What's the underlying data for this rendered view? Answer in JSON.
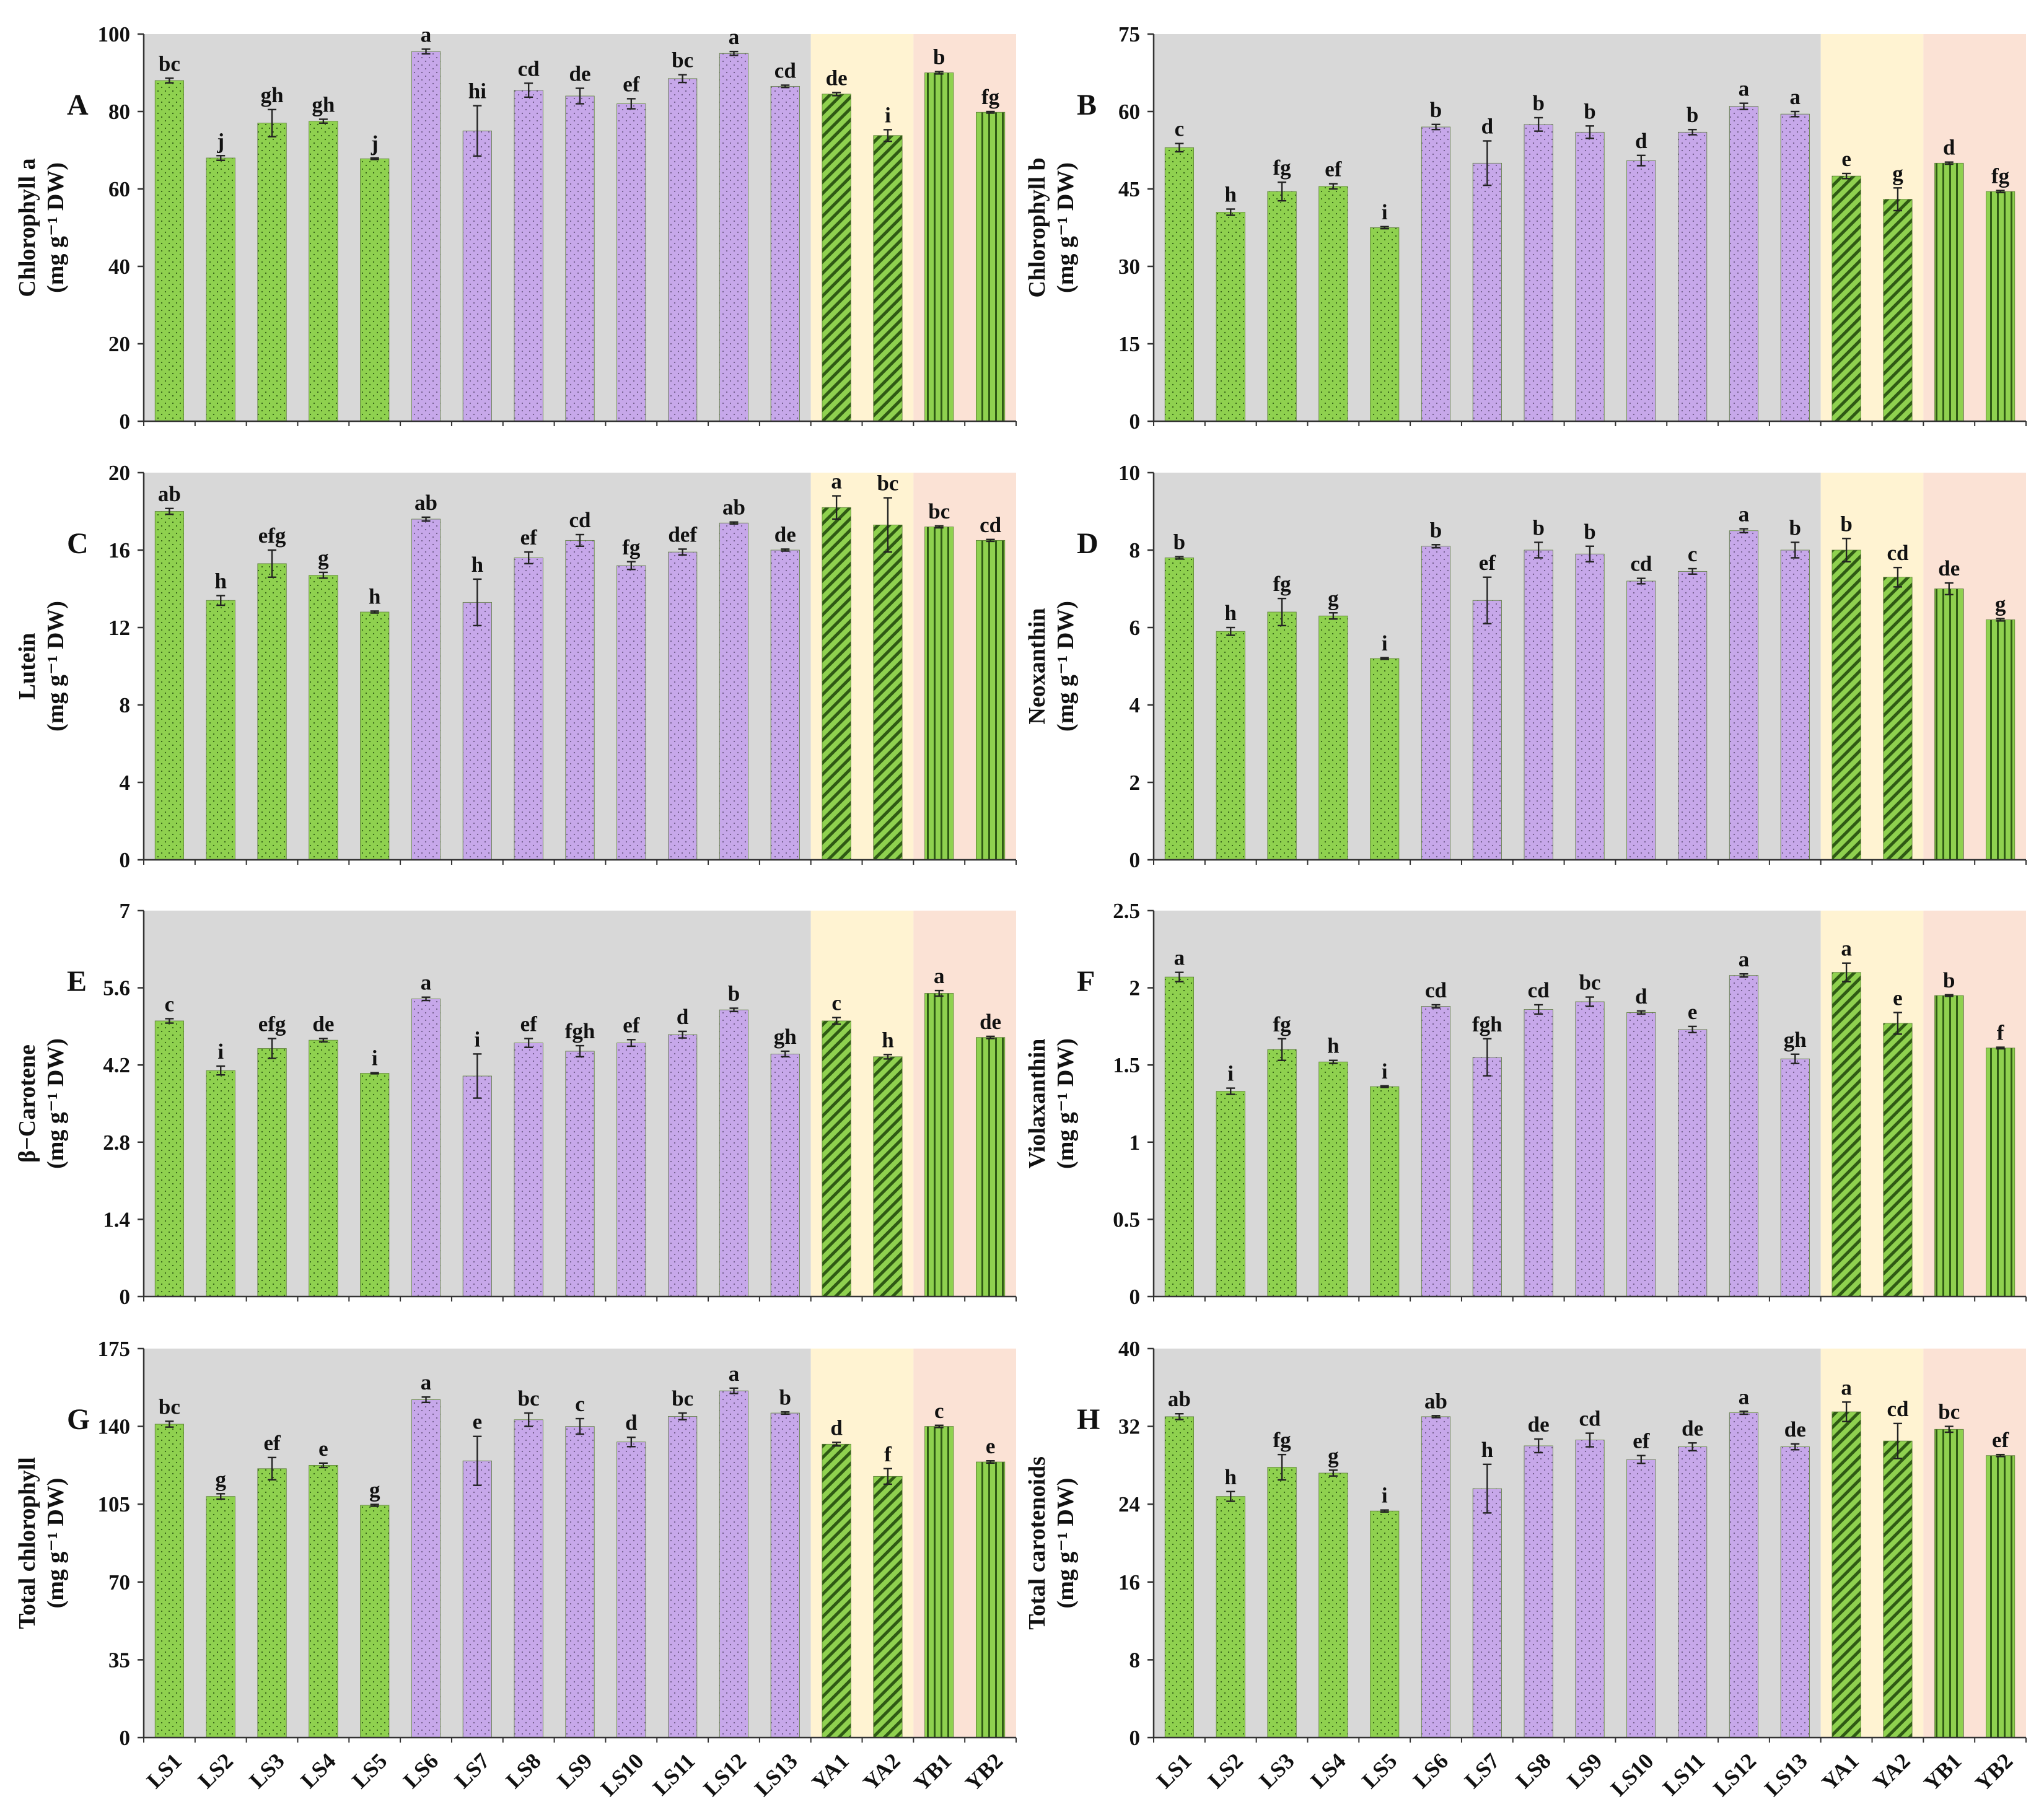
{
  "chart_data": [
    {
      "type": "bar",
      "panel": "A",
      "ylabel_line1": "Chlorophyll a",
      "ylabel_line2": "(mg g⁻¹ DW)",
      "ylim": [
        0,
        100
      ],
      "yticks": [
        "0",
        "20",
        "40",
        "60",
        "80",
        "100"
      ],
      "categories": [
        "LS1",
        "LS2",
        "LS3",
        "LS4",
        "LS5",
        "LS6",
        "LS7",
        "LS8",
        "LS9",
        "LS10",
        "LS11",
        "LS12",
        "LS13",
        "YA1",
        "YA2",
        "YB1",
        "YB2"
      ],
      "values": [
        88,
        68,
        77,
        77.5,
        67.8,
        95.5,
        75,
        85.5,
        84,
        82,
        88.5,
        95,
        86.5,
        84.5,
        73.8,
        90,
        79.8
      ],
      "errors": [
        0.6,
        0.6,
        3.5,
        0.5,
        0.2,
        0.6,
        6.5,
        1.8,
        2,
        1.3,
        1,
        0.5,
        0.3,
        0.4,
        1.5,
        0.3,
        0.2
      ],
      "letters": [
        "bc",
        "j",
        "gh",
        "gh",
        "j",
        "a",
        "hi",
        "cd",
        "de",
        "ef",
        "bc",
        "a",
        "cd",
        "de",
        "i",
        "b",
        "fg"
      ]
    },
    {
      "type": "bar",
      "panel": "B",
      "ylabel_line1": "Chlorophyll b",
      "ylabel_line2": "(mg g⁻¹ DW)",
      "ylim": [
        0,
        75
      ],
      "yticks": [
        "0",
        "15",
        "30",
        "45",
        "60",
        "75"
      ],
      "categories": [
        "LS1",
        "LS2",
        "LS3",
        "LS4",
        "LS5",
        "LS6",
        "LS7",
        "LS8",
        "LS9",
        "LS10",
        "LS11",
        "LS12",
        "LS13",
        "YA1",
        "YA2",
        "YB1",
        "YB2"
      ],
      "values": [
        53,
        40.5,
        44.5,
        45.5,
        37.5,
        57,
        50,
        57.5,
        56,
        50.5,
        56,
        61,
        59.5,
        47.5,
        43,
        50,
        44.5
      ],
      "errors": [
        0.8,
        0.6,
        1.8,
        0.5,
        0.2,
        0.5,
        4.3,
        1.3,
        1.2,
        1,
        0.5,
        0.6,
        0.5,
        0.5,
        2.2,
        0.2,
        0.2
      ],
      "letters": [
        "c",
        "h",
        "fg",
        "ef",
        "i",
        "b",
        "d",
        "b",
        "b",
        "d",
        "b",
        "a",
        "a",
        "e",
        "g",
        "d",
        "fg"
      ]
    },
    {
      "type": "bar",
      "panel": "C",
      "ylabel_line1": "Lutein",
      "ylabel_line2": "(mg g⁻¹ DW)",
      "ylim": [
        0,
        20
      ],
      "yticks": [
        "0",
        "4",
        "8",
        "12",
        "16",
        "20"
      ],
      "categories": [
        "LS1",
        "LS2",
        "LS3",
        "LS4",
        "LS5",
        "LS6",
        "LS7",
        "LS8",
        "LS9",
        "LS10",
        "LS11",
        "LS12",
        "LS13",
        "YA1",
        "YA2",
        "YB1",
        "YB2"
      ],
      "values": [
        18,
        13.4,
        15.3,
        14.7,
        12.8,
        17.6,
        13.3,
        15.6,
        16.5,
        15.2,
        15.9,
        17.4,
        16,
        18.2,
        17.3,
        17.2,
        16.5
      ],
      "errors": [
        0.15,
        0.25,
        0.7,
        0.15,
        0.05,
        0.1,
        1.2,
        0.3,
        0.3,
        0.2,
        0.15,
        0.05,
        0.05,
        0.6,
        1.4,
        0.05,
        0.05
      ],
      "letters": [
        "ab",
        "h",
        "efg",
        "g",
        "h",
        "ab",
        "h",
        "ef",
        "cd",
        "fg",
        "def",
        "ab",
        "de",
        "a",
        "bc",
        "bc",
        "cd"
      ]
    },
    {
      "type": "bar",
      "panel": "D",
      "ylabel_line1": "Neoxanthin",
      "ylabel_line2": "(mg g⁻¹ DW)",
      "ylim": [
        0,
        10
      ],
      "yticks": [
        "0",
        "2",
        "4",
        "6",
        "8",
        "10"
      ],
      "categories": [
        "LS1",
        "LS2",
        "LS3",
        "LS4",
        "LS5",
        "LS6",
        "LS7",
        "LS8",
        "LS9",
        "LS10",
        "LS11",
        "LS12",
        "LS13",
        "YA1",
        "YA2",
        "YB1",
        "YB2"
      ],
      "values": [
        7.8,
        5.9,
        6.4,
        6.3,
        5.2,
        8.1,
        6.7,
        8,
        7.9,
        7.2,
        7.45,
        8.5,
        8,
        8,
        7.3,
        7,
        6.2
      ],
      "errors": [
        0.03,
        0.1,
        0.35,
        0.08,
        0.02,
        0.04,
        0.6,
        0.2,
        0.2,
        0.07,
        0.07,
        0.05,
        0.2,
        0.3,
        0.25,
        0.15,
        0.03
      ],
      "letters": [
        "b",
        "h",
        "fg",
        "g",
        "i",
        "b",
        "ef",
        "b",
        "b",
        "cd",
        "c",
        "a",
        "b",
        "b",
        "cd",
        "de",
        "g"
      ]
    },
    {
      "type": "bar",
      "panel": "E",
      "ylabel_line1": "β−Carotene",
      "ylabel_line2": "(mg g⁻¹ DW)",
      "ylim": [
        0,
        7
      ],
      "yticks": [
        "0",
        "1.4",
        "2.8",
        "4.2",
        "5.6",
        "7"
      ],
      "categories": [
        "LS1",
        "LS2",
        "LS3",
        "LS4",
        "LS5",
        "LS6",
        "LS7",
        "LS8",
        "LS9",
        "LS10",
        "LS11",
        "LS12",
        "LS13",
        "YA1",
        "YA2",
        "YB1",
        "YB2"
      ],
      "values": [
        5,
        4.1,
        4.5,
        4.65,
        4.05,
        5.4,
        4,
        4.6,
        4.45,
        4.6,
        4.75,
        5.2,
        4.4,
        5,
        4.35,
        5.5,
        4.7
      ],
      "errors": [
        0.04,
        0.08,
        0.18,
        0.03,
        0.01,
        0.03,
        0.4,
        0.08,
        0.1,
        0.06,
        0.06,
        0.03,
        0.05,
        0.06,
        0.04,
        0.05,
        0.02
      ],
      "letters": [
        "c",
        "i",
        "efg",
        "de",
        "i",
        "a",
        "i",
        "ef",
        "fgh",
        "ef",
        "d",
        "b",
        "gh",
        "c",
        "h",
        "a",
        "de"
      ]
    },
    {
      "type": "bar",
      "panel": "F",
      "ylabel_line1": "Violaxanthin",
      "ylabel_line2": "(mg g⁻¹ DW)",
      "ylim": [
        0,
        2.5
      ],
      "yticks": [
        "0",
        "0.5",
        "1",
        "1.5",
        "2",
        "2.5"
      ],
      "categories": [
        "LS1",
        "LS2",
        "LS3",
        "LS4",
        "LS5",
        "LS6",
        "LS7",
        "LS8",
        "LS9",
        "LS10",
        "LS11",
        "LS12",
        "LS13",
        "YA1",
        "YA2",
        "YB1",
        "YB2"
      ],
      "values": [
        2.07,
        1.33,
        1.6,
        1.52,
        1.36,
        1.88,
        1.55,
        1.86,
        1.91,
        1.84,
        1.73,
        2.08,
        1.54,
        2.1,
        1.77,
        1.95,
        1.61
      ],
      "errors": [
        0.03,
        0.02,
        0.07,
        0.01,
        0.005,
        0.01,
        0.12,
        0.03,
        0.03,
        0.01,
        0.02,
        0.01,
        0.03,
        0.06,
        0.07,
        0.005,
        0.005
      ],
      "letters": [
        "a",
        "i",
        "fg",
        "h",
        "i",
        "cd",
        "fgh",
        "cd",
        "bc",
        "d",
        "e",
        "a",
        "gh",
        "a",
        "e",
        "b",
        "f"
      ]
    },
    {
      "type": "bar",
      "panel": "G",
      "ylabel_line1": "Total chlorophyll",
      "ylabel_line2": "(mg g⁻¹ DW)",
      "ylim": [
        0,
        175
      ],
      "yticks": [
        "0",
        "35",
        "70",
        "105",
        "140",
        "175"
      ],
      "categories": [
        "LS1",
        "LS2",
        "LS3",
        "LS4",
        "LS5",
        "LS6",
        "LS7",
        "LS8",
        "LS9",
        "LS10",
        "LS11",
        "LS12",
        "LS13",
        "YA1",
        "YA2",
        "YB1",
        "YB2"
      ],
      "values": [
        141,
        108.5,
        121,
        122.5,
        104.5,
        152,
        124.5,
        143,
        140,
        133,
        144.5,
        156,
        146,
        132,
        117.5,
        140,
        124
      ],
      "errors": [
        1.3,
        1.2,
        5,
        1,
        0.4,
        1.2,
        11,
        3,
        3.5,
        2.1,
        1.5,
        1.2,
        0.5,
        0.8,
        3.5,
        0.5,
        0.5
      ],
      "letters": [
        "bc",
        "g",
        "ef",
        "e",
        "g",
        "a",
        "e",
        "bc",
        "c",
        "d",
        "bc",
        "a",
        "b",
        "d",
        "f",
        "c",
        "e"
      ]
    },
    {
      "type": "bar",
      "panel": "H",
      "ylabel_line1": "Total carotenoids",
      "ylabel_line2": "(mg g⁻¹ DW)",
      "ylim": [
        0,
        40
      ],
      "yticks": [
        "0",
        "8",
        "16",
        "24",
        "32",
        "40"
      ],
      "categories": [
        "LS1",
        "LS2",
        "LS3",
        "LS4",
        "LS5",
        "LS6",
        "LS7",
        "LS8",
        "LS9",
        "LS10",
        "LS11",
        "LS12",
        "LS13",
        "YA1",
        "YA2",
        "YB1",
        "YB2"
      ],
      "values": [
        33,
        24.8,
        27.8,
        27.2,
        23.3,
        33,
        25.6,
        30,
        30.6,
        28.6,
        29.9,
        33.4,
        29.9,
        33.5,
        30.5,
        31.7,
        29
      ],
      "errors": [
        0.3,
        0.5,
        1.3,
        0.3,
        0.1,
        0.1,
        2.5,
        0.7,
        0.7,
        0.4,
        0.4,
        0.15,
        0.3,
        1,
        1.8,
        0.3,
        0.1
      ],
      "letters": [
        "ab",
        "h",
        "fg",
        "g",
        "i",
        "ab",
        "h",
        "de",
        "cd",
        "ef",
        "de",
        "a",
        "de",
        "a",
        "cd",
        "bc",
        "ef"
      ]
    }
  ],
  "style": {
    "green": "#8fd14f",
    "purple": "#c7a8ea",
    "dark_green": "#2f5a14",
    "bg_gray": "#d8d8d8",
    "bg_yellow": "#fff3d2",
    "bg_pink": "#fbe2d5",
    "error_bar": "#222222"
  }
}
